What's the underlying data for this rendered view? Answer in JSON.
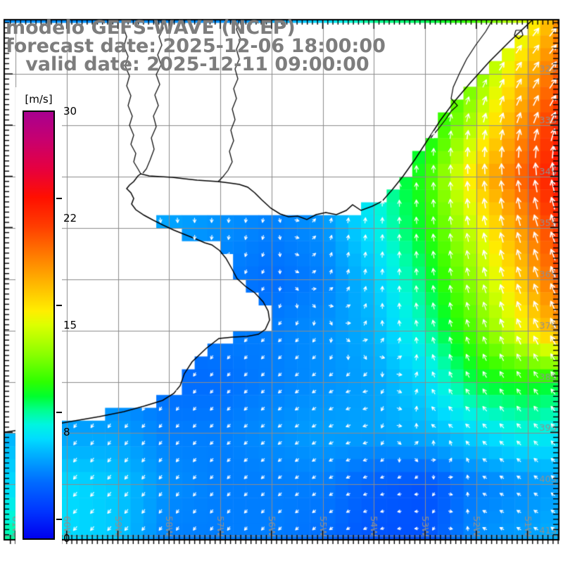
{
  "title": {
    "line1": "modelo GEFS-WAVE (NCEP)",
    "line2": "forecast date: 2025-12-06 18:00:00",
    "line3": "   valid date: 2025-12-11 09:00:00"
  },
  "colorbar": {
    "unit": "[m/s]",
    "min": 0,
    "max": 30,
    "tick_labels": [
      "30",
      "22",
      "15",
      "8",
      "0"
    ],
    "tick_values": [
      30,
      22.5,
      15,
      7.5,
      0
    ],
    "stops": [
      [
        0,
        "#0000EE"
      ],
      [
        2,
        "#0038FF"
      ],
      [
        4,
        "#006CFF"
      ],
      [
        5,
        "#0090FF"
      ],
      [
        6,
        "#00B4FF"
      ],
      [
        7,
        "#00DCFF"
      ],
      [
        8,
        "#00F5E0"
      ],
      [
        9,
        "#00FF90"
      ],
      [
        10,
        "#00FF2E"
      ],
      [
        11,
        "#2EFF00"
      ],
      [
        13,
        "#8CFF00"
      ],
      [
        15,
        "#DCFF00"
      ],
      [
        16,
        "#FFEE00"
      ],
      [
        18,
        "#FFB400"
      ],
      [
        20,
        "#FF7800"
      ],
      [
        22,
        "#FF3C00"
      ],
      [
        24,
        "#FF0F00"
      ],
      [
        26,
        "#E60040"
      ],
      [
        28,
        "#C8006E"
      ],
      [
        30,
        "#A80090"
      ]
    ]
  },
  "axes": {
    "lon_labels": [
      "61W",
      "60W",
      "59W",
      "58W",
      "57W",
      "56W",
      "55W",
      "54W",
      "53W",
      "52W",
      "51W"
    ],
    "lat_labels": [
      "32S",
      "33S",
      "34S",
      "35S",
      "36S",
      "37S",
      "38S",
      "39S",
      "40S",
      "41S"
    ],
    "grid_color": "#8c8c8c",
    "label_color": "#909090"
  },
  "wind_field": {
    "type": "heatmap",
    "units": "m/s",
    "x_nodes": [
      6,
      95,
      168,
      240,
      313,
      386,
      459,
      531,
      604,
      677,
      750,
      794
    ],
    "y_nodes": [
      30,
      105,
      178,
      251,
      324,
      397,
      470,
      543,
      615,
      688,
      767
    ],
    "speed": [
      [
        5,
        5,
        5,
        5,
        5,
        5.5,
        7,
        9,
        9.5,
        11.5,
        15,
        19
      ],
      [
        5,
        5,
        5,
        5,
        5,
        5.5,
        6.5,
        8,
        9,
        12.5,
        18,
        21
      ],
      [
        5,
        5,
        6,
        6,
        5.5,
        5,
        6,
        8,
        9.5,
        14.5,
        20,
        23
      ],
      [
        5.5,
        5.5,
        7,
        6,
        5.5,
        5,
        6,
        8,
        11,
        17,
        21.5,
        24
      ],
      [
        5,
        5,
        5.5,
        5.5,
        5,
        4.5,
        5,
        7.5,
        10.5,
        15,
        19.5,
        22.5
      ],
      [
        4.5,
        4.5,
        5,
        4.5,
        4.5,
        4,
        4.5,
        6.5,
        9.5,
        13.5,
        18,
        21
      ],
      [
        4.5,
        4.5,
        4.5,
        4,
        4.5,
        4.5,
        5,
        6,
        8.5,
        12,
        16,
        18.5
      ],
      [
        5,
        5,
        4.5,
        4,
        4,
        4.5,
        5,
        5.5,
        7,
        10,
        10.5,
        10
      ],
      [
        6,
        5.5,
        5.5,
        4.5,
        4.5,
        5,
        5.5,
        5.5,
        6,
        7,
        8,
        7.5
      ],
      [
        7,
        7,
        6.5,
        5,
        4.5,
        4.5,
        4.5,
        3.5,
        3,
        4.5,
        5,
        5.5
      ],
      [
        9,
        7,
        6.5,
        4.5,
        4.5,
        4.5,
        4,
        3,
        3,
        5,
        5.5,
        6
      ]
    ],
    "heading_deg": [
      [
        150,
        150,
        150,
        150,
        155,
        170,
        20,
        25,
        30,
        35,
        38,
        40
      ],
      [
        150,
        150,
        150,
        150,
        155,
        170,
        10,
        15,
        20,
        28,
        33,
        37
      ],
      [
        150,
        150,
        155,
        160,
        165,
        180,
        5,
        5,
        8,
        12,
        18,
        24
      ],
      [
        160,
        160,
        165,
        170,
        175,
        185,
        5,
        0,
        -2,
        -5,
        -8,
        -12
      ],
      [
        150,
        155,
        160,
        175,
        185,
        195,
        15,
        5,
        -6,
        -12,
        -18,
        -20
      ],
      [
        160,
        165,
        175,
        190,
        200,
        210,
        25,
        8,
        -8,
        -15,
        -20,
        -22
      ],
      [
        170,
        180,
        190,
        200,
        215,
        225,
        210,
        -5,
        -15,
        -20,
        -25,
        -28
      ],
      [
        185,
        195,
        205,
        210,
        220,
        225,
        235,
        260,
        -25,
        -32,
        -35,
        -38
      ],
      [
        210,
        215,
        215,
        220,
        225,
        230,
        240,
        255,
        -60,
        -48,
        -42,
        -40
      ],
      [
        220,
        220,
        218,
        215,
        220,
        228,
        235,
        252,
        268,
        -62,
        -55,
        -50
      ],
      [
        225,
        222,
        220,
        215,
        215,
        220,
        230,
        250,
        268,
        -65,
        -60,
        -55
      ]
    ]
  },
  "geometry": {
    "coast": [
      757,
      28,
      725,
      58,
      695,
      88,
      668,
      118,
      645,
      145,
      625,
      172,
      607,
      200,
      590,
      226,
      573,
      250,
      557,
      270,
      543,
      286,
      529,
      293,
      513,
      299,
      501,
      291,
      492,
      299,
      478,
      305,
      463,
      302,
      449,
      305,
      436,
      312,
      423,
      307,
      410,
      308,
      398,
      304,
      385,
      296,
      372,
      284,
      362,
      274,
      352,
      266,
      340,
      262,
      326,
      260,
      310,
      258,
      295,
      257,
      280,
      256,
      262,
      254,
      245,
      252,
      228,
      251,
      212,
      250,
      200,
      247,
      196,
      250,
      190,
      258,
      184,
      263,
      180,
      268,
      186,
      274,
      190,
      282,
      187,
      290,
      193,
      298,
      205,
      306,
      218,
      313,
      232,
      320,
      247,
      327,
      262,
      333,
      277,
      339,
      291,
      345,
      301,
      348,
      312,
      356,
      321,
      367,
      329,
      381,
      337,
      396,
      349,
      407,
      362,
      416,
      374,
      429,
      381,
      442,
      383,
      455,
      377,
      468,
      367,
      475,
      351,
      478,
      331,
      479,
      311,
      481,
      293,
      495,
      273,
      514,
      262,
      531,
      256,
      548,
      247,
      559,
      231,
      569,
      205,
      577,
      176,
      585,
      141,
      592,
      106,
      598,
      71,
      604,
      36,
      610,
      0,
      615
    ],
    "lagoon": [
      700,
      28,
      690,
      45,
      676,
      64,
      663,
      84,
      653,
      104,
      644,
      124,
      641,
      140,
      650,
      150,
      641,
      158,
      633,
      170,
      622,
      184,
      612,
      196
    ],
    "islet": [
      733,
      43,
      741,
      43,
      743,
      50,
      737,
      55,
      731,
      50
    ],
    "rivers": [
      [
        178,
        28,
        175,
        38,
        180,
        52,
        176,
        66,
        182,
        80,
        178,
        94,
        184,
        108,
        180,
        122,
        186,
        136,
        182,
        150,
        188,
        165,
        184,
        178,
        190,
        192,
        186,
        205,
        193,
        218,
        190,
        230,
        196,
        240,
        200,
        247
      ],
      [
        228,
        28,
        232,
        40,
        226,
        52,
        230,
        64,
        224,
        78,
        229,
        92,
        222,
        106,
        227,
        120,
        220,
        135,
        225,
        150,
        218,
        165,
        222,
        180,
        215,
        196,
        219,
        212,
        213,
        228,
        208,
        240,
        203,
        246
      ],
      [
        340,
        28,
        336,
        42,
        342,
        56,
        336,
        70,
        340,
        84,
        334,
        98,
        338,
        112,
        332,
        126,
        336,
        140,
        330,
        155,
        334,
        170,
        328,
        185,
        332,
        200,
        326,
        215,
        330,
        230,
        324,
        242,
        316,
        252,
        310,
        258
      ]
    ]
  },
  "style_colors": {
    "title_gray": "#7d7d7d",
    "arrow": "#ffffff",
    "coast": "#000000",
    "frame": "#000000"
  }
}
